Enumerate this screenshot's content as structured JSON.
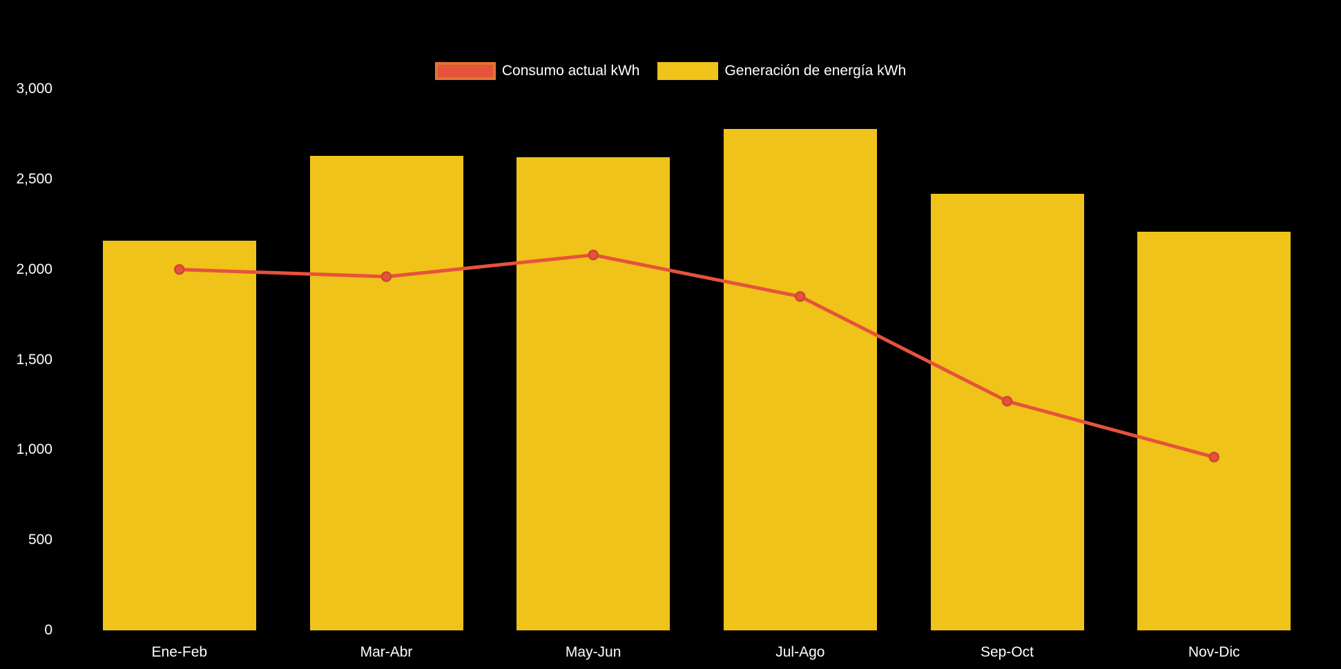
{
  "colors": {
    "background": "#000000",
    "bar": "#EFC319",
    "line": "#E6523C",
    "line_point_fill": "#E6523C",
    "line_point_stroke": "#CB4634",
    "legend_line_border": "#E0762E",
    "text": "#FFFFFF"
  },
  "legend": {
    "items": [
      {
        "label": "Consumo actual kWh",
        "series_type": "line"
      },
      {
        "label": "Generación de energía kWh",
        "series_type": "bar"
      }
    ]
  },
  "chart_data": {
    "type": "bar",
    "subtype": "bar-with-line-overlay",
    "title": "",
    "xlabel": "",
    "ylabel": "",
    "categories": [
      "Ene-Feb",
      "Mar-Abr",
      "May-Jun",
      "Jul-Ago",
      "Sep-Oct",
      "Nov-Dic"
    ],
    "series": [
      {
        "name": "Consumo actual kWh",
        "type": "line",
        "values": [
          2000,
          1960,
          2080,
          1850,
          1270,
          960
        ]
      },
      {
        "name": "Generación de energía kWh",
        "type": "bar",
        "values": [
          2160,
          2630,
          2620,
          2780,
          2420,
          2210
        ]
      }
    ],
    "ylim": [
      0,
      3000
    ],
    "yticks": [
      0,
      500,
      1000,
      1500,
      2000,
      2500,
      3000
    ],
    "ytick_format": "thousands-comma",
    "grid": false,
    "legend_position": "top",
    "background": "black"
  }
}
